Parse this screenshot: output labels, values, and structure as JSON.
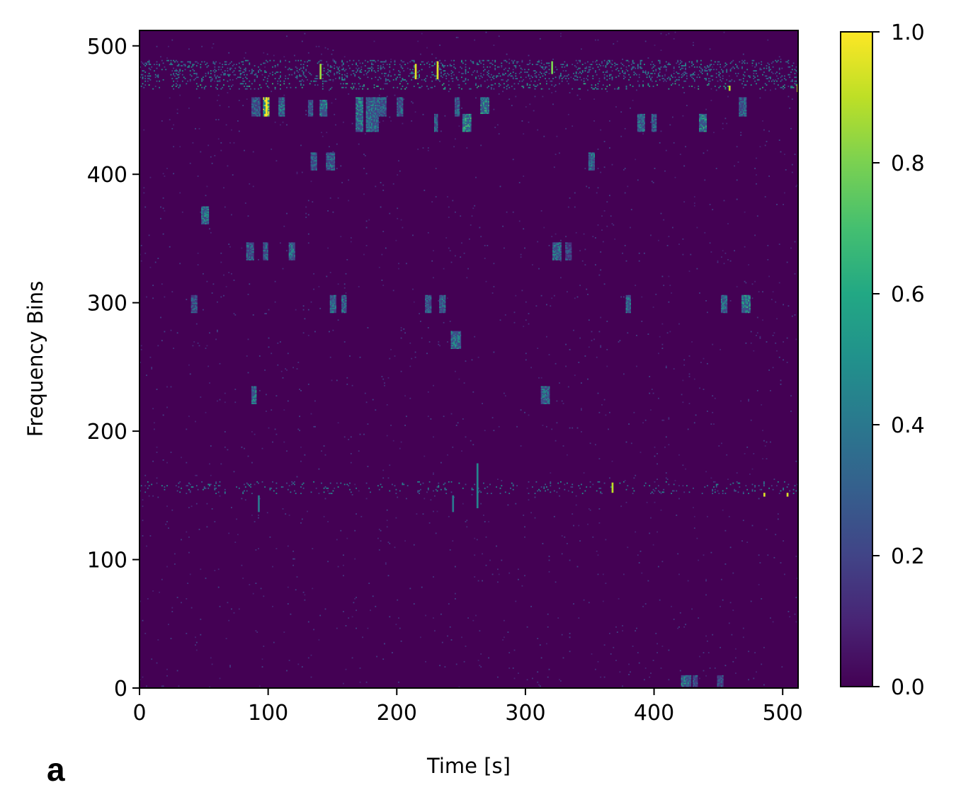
{
  "panel_label": "a",
  "chart_data": {
    "type": "heatmap",
    "title": "",
    "xlabel": "Time [s]",
    "ylabel": "Frequency Bins",
    "xlim": [
      0,
      512
    ],
    "ylim": [
      0,
      512
    ],
    "x_ticks": [
      0,
      100,
      200,
      300,
      400,
      500
    ],
    "y_ticks": [
      0,
      100,
      200,
      300,
      400,
      500
    ],
    "colormap": "viridis",
    "background_value": 0.0,
    "colorbar": {
      "range": [
        0.0,
        1.0
      ],
      "ticks": [
        "0.0",
        "0.2",
        "0.4",
        "0.6",
        "0.8",
        "1.0"
      ],
      "placement": "right"
    },
    "bands": [
      {
        "name": "band-480",
        "y": [
          472,
          488
        ],
        "density": 0.45,
        "intensity": 0.35
      },
      {
        "name": "band-468",
        "y": [
          466,
          470
        ],
        "density": 0.3,
        "intensity": 0.45
      },
      {
        "name": "band-155",
        "y": [
          151,
          160
        ],
        "density": 0.15,
        "intensity": 0.35
      }
    ],
    "clusters": [
      {
        "x": [
          87,
          94
        ],
        "y": [
          445,
          460
        ],
        "value": 0.4
      },
      {
        "x": [
          96,
          101
        ],
        "y": [
          445,
          460
        ],
        "value": 0.95
      },
      {
        "x": [
          108,
          113
        ],
        "y": [
          445,
          460
        ],
        "value": 0.45
      },
      {
        "x": [
          131,
          135
        ],
        "y": [
          445,
          458
        ],
        "value": 0.4
      },
      {
        "x": [
          140,
          146
        ],
        "y": [
          445,
          458
        ],
        "value": 0.5
      },
      {
        "x": [
          168,
          174
        ],
        "y": [
          433,
          460
        ],
        "value": 0.5
      },
      {
        "x": [
          176,
          186
        ],
        "y": [
          433,
          460
        ],
        "value": 0.45
      },
      {
        "x": [
          186,
          192
        ],
        "y": [
          445,
          460
        ],
        "value": 0.4
      },
      {
        "x": [
          200,
          205
        ],
        "y": [
          445,
          460
        ],
        "value": 0.4
      },
      {
        "x": [
          245,
          249
        ],
        "y": [
          445,
          460
        ],
        "value": 0.4
      },
      {
        "x": [
          265,
          272
        ],
        "y": [
          447,
          460
        ],
        "value": 0.55
      },
      {
        "x": [
          229,
          232
        ],
        "y": [
          433,
          447
        ],
        "value": 0.4
      },
      {
        "x": [
          251,
          258
        ],
        "y": [
          433,
          447
        ],
        "value": 0.6
      },
      {
        "x": [
          387,
          393
        ],
        "y": [
          433,
          447
        ],
        "value": 0.45
      },
      {
        "x": [
          398,
          402
        ],
        "y": [
          433,
          447
        ],
        "value": 0.4
      },
      {
        "x": [
          435,
          441
        ],
        "y": [
          433,
          447
        ],
        "value": 0.55
      },
      {
        "x": [
          466,
          472
        ],
        "y": [
          445,
          460
        ],
        "value": 0.4
      },
      {
        "x": [
          133,
          138
        ],
        "y": [
          403,
          417
        ],
        "value": 0.4
      },
      {
        "x": [
          145,
          152
        ],
        "y": [
          403,
          417
        ],
        "value": 0.4
      },
      {
        "x": [
          349,
          354
        ],
        "y": [
          403,
          417
        ],
        "value": 0.45
      },
      {
        "x": [
          48,
          54
        ],
        "y": [
          361,
          375
        ],
        "value": 0.5
      },
      {
        "x": [
          83,
          89
        ],
        "y": [
          333,
          347
        ],
        "value": 0.4
      },
      {
        "x": [
          96,
          100
        ],
        "y": [
          333,
          347
        ],
        "value": 0.4
      },
      {
        "x": [
          116,
          121
        ],
        "y": [
          333,
          347
        ],
        "value": 0.45
      },
      {
        "x": [
          321,
          328
        ],
        "y": [
          333,
          347
        ],
        "value": 0.45
      },
      {
        "x": [
          331,
          336
        ],
        "y": [
          333,
          347
        ],
        "value": 0.3
      },
      {
        "x": [
          40,
          45
        ],
        "y": [
          292,
          306
        ],
        "value": 0.35
      },
      {
        "x": [
          148,
          153
        ],
        "y": [
          292,
          306
        ],
        "value": 0.45
      },
      {
        "x": [
          157,
          161
        ],
        "y": [
          292,
          306
        ],
        "value": 0.45
      },
      {
        "x": [
          222,
          227
        ],
        "y": [
          292,
          306
        ],
        "value": 0.4
      },
      {
        "x": [
          233,
          238
        ],
        "y": [
          292,
          306
        ],
        "value": 0.45
      },
      {
        "x": [
          378,
          382
        ],
        "y": [
          292,
          306
        ],
        "value": 0.45
      },
      {
        "x": [
          452,
          457
        ],
        "y": [
          292,
          306
        ],
        "value": 0.45
      },
      {
        "x": [
          468,
          475
        ],
        "y": [
          292,
          306
        ],
        "value": 0.55
      },
      {
        "x": [
          242,
          250
        ],
        "y": [
          264,
          278
        ],
        "value": 0.5
      },
      {
        "x": [
          87,
          91
        ],
        "y": [
          221,
          235
        ],
        "value": 0.5
      },
      {
        "x": [
          312,
          319
        ],
        "y": [
          221,
          235
        ],
        "value": 0.45
      },
      {
        "x": [
          421,
          429
        ],
        "y": [
          1,
          10
        ],
        "value": 0.5
      },
      {
        "x": [
          430,
          434
        ],
        "y": [
          1,
          10
        ],
        "value": 0.35
      },
      {
        "x": [
          449,
          454
        ],
        "y": [
          1,
          10
        ],
        "value": 0.35
      }
    ],
    "streaks": [
      {
        "x": 98,
        "y": [
          445,
          460
        ],
        "value": 1.0
      },
      {
        "x": 214,
        "y": [
          474,
          486
        ],
        "value": 0.95
      },
      {
        "x": 231,
        "y": [
          474,
          488
        ],
        "value": 0.95
      },
      {
        "x": 140,
        "y": [
          474,
          486
        ],
        "value": 0.85
      },
      {
        "x": 511,
        "y": [
          464,
          470
        ],
        "value": 0.95
      },
      {
        "x": 367,
        "y": [
          152,
          160
        ],
        "value": 0.9
      },
      {
        "x": 458,
        "y": [
          465,
          469
        ],
        "value": 0.9
      },
      {
        "x": 485,
        "y": [
          149,
          152
        ],
        "value": 0.95
      },
      {
        "x": 503,
        "y": [
          149,
          152
        ],
        "value": 0.95
      },
      {
        "x": 320,
        "y": [
          478,
          488
        ],
        "value": 0.8
      },
      {
        "x": 262,
        "y": [
          140,
          175
        ],
        "value": 0.45
      },
      {
        "x": 92,
        "y": [
          137,
          150
        ],
        "value": 0.4
      },
      {
        "x": 243,
        "y": [
          137,
          150
        ],
        "value": 0.4
      }
    ]
  }
}
